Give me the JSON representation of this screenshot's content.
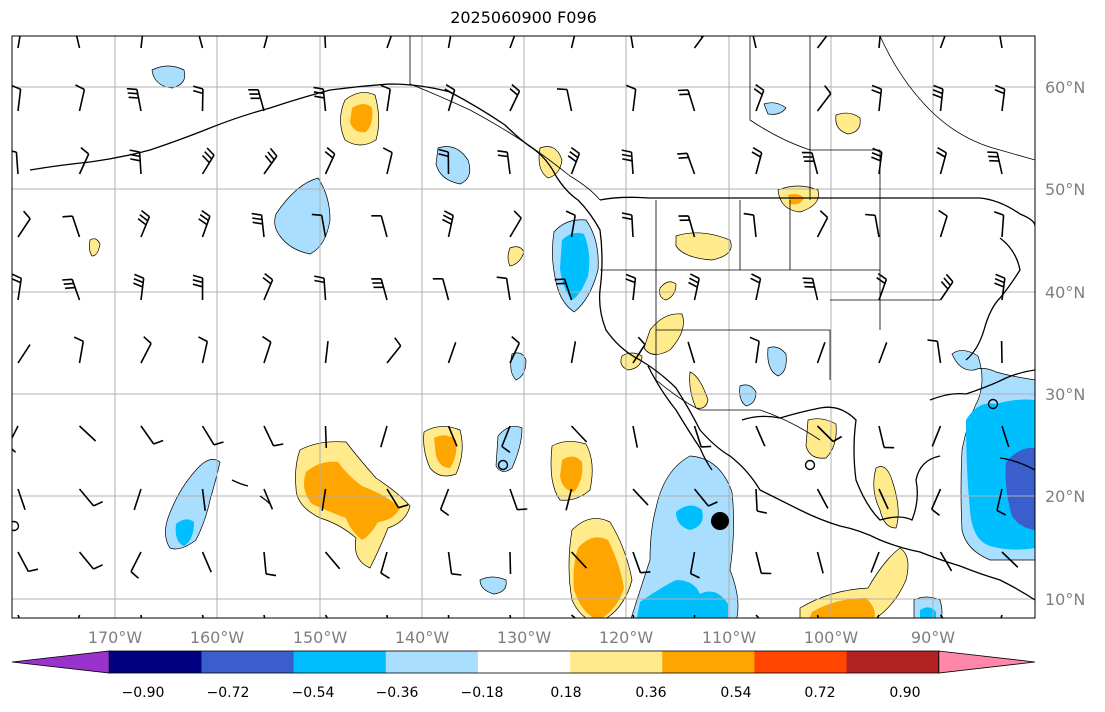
{
  "title": "2025060900 F096",
  "map": {
    "longitude_labels": [
      "170°W",
      "160°W",
      "150°W",
      "140°W",
      "130°W",
      "120°W",
      "110°W",
      "100°W",
      "90°W"
    ],
    "latitude_labels": [
      "60°N",
      "50°N",
      "40°N",
      "30°N",
      "20°N",
      "10°N"
    ],
    "gridlines": true
  },
  "colorbar": {
    "tick_labels": [
      "−0.90",
      "−0.72",
      "−0.54",
      "−0.36",
      "−0.18",
      "0.18",
      "0.36",
      "0.54",
      "0.72",
      "0.90"
    ],
    "colors": [
      "#9933cc",
      "#000080",
      "#3a5fcd",
      "#00bfff",
      "#aadeff",
      "#ffffff",
      "#ffea8c",
      "#ffa500",
      "#ff4500",
      "#b22222",
      "#ff88aa"
    ],
    "extend": "both"
  },
  "colors": {
    "positive_light": "#ffea8c",
    "positive_mid": "#ffa500",
    "negative_light": "#aadeff",
    "negative_mid": "#00bfff",
    "negative_dark": "#3a5fcd",
    "grid": "#b0b0b0"
  },
  "marker": {
    "name": "black-dot"
  }
}
